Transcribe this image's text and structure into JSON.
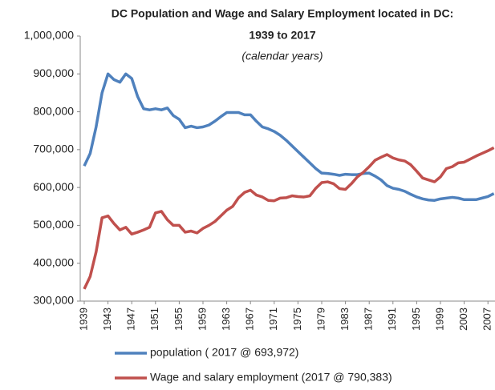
{
  "chart_data": {
    "type": "line",
    "title": "DC Population and Wage and Salary Employment located in DC:",
    "subtitle": "1939 to 2017",
    "note": "(calendar  years)",
    "categories": [
      "1939",
      null,
      null,
      null,
      "1943",
      null,
      null,
      null,
      "1947",
      null,
      null,
      null,
      "1951",
      null,
      null,
      null,
      "1955",
      null,
      null,
      null,
      "1959",
      null,
      null,
      null,
      "1963",
      null,
      null,
      null,
      "1967",
      null,
      null,
      null,
      "1971",
      null,
      null,
      null,
      "1975",
      null,
      null,
      null,
      "1979",
      null,
      null,
      null,
      "1983",
      null,
      null,
      null,
      "1987",
      null,
      null,
      null,
      "1991",
      null,
      null,
      null,
      "1995",
      null,
      null,
      null,
      "1999",
      null,
      null,
      null,
      "2003",
      null,
      null,
      null,
      "2007",
      null
    ],
    "series": [
      {
        "name": "population ( 2017 @ 693,972)",
        "color": "#4f81bd",
        "values": [
          657000,
          690000,
          760000,
          850000,
          900000,
          885000,
          878000,
          900000,
          888000,
          840000,
          808000,
          805000,
          808000,
          805000,
          810000,
          790000,
          780000,
          758000,
          762000,
          758000,
          760000,
          765000,
          775000,
          787000,
          798000,
          798000,
          798000,
          792000,
          792000,
          775000,
          760000,
          755000,
          748000,
          738000,
          725000,
          710000,
          695000,
          680000,
          665000,
          650000,
          638000,
          637000,
          635000,
          632000,
          635000,
          634000,
          634000,
          637000,
          638000,
          630000,
          620000,
          605000,
          598000,
          595000,
          590000,
          582000,
          575000,
          570000,
          567000,
          566000,
          570000,
          572000,
          574000,
          572000,
          568000,
          568000,
          568000,
          572000,
          576000,
          584000
        ]
      },
      {
        "name": "Wage and salary employment (2017 @ 790,383)",
        "color": "#c0504d",
        "values": [
          332000,
          365000,
          430000,
          520000,
          525000,
          505000,
          488000,
          495000,
          477000,
          482000,
          488000,
          495000,
          533000,
          537000,
          515000,
          500000,
          500000,
          482000,
          485000,
          480000,
          492000,
          500000,
          510000,
          525000,
          540000,
          550000,
          573000,
          587000,
          593000,
          580000,
          575000,
          566000,
          565000,
          572000,
          573000,
          578000,
          576000,
          575000,
          578000,
          598000,
          613000,
          615000,
          610000,
          597000,
          595000,
          610000,
          628000,
          640000,
          655000,
          672000,
          680000,
          687000,
          678000,
          673000,
          670000,
          660000,
          643000,
          625000,
          620000,
          615000,
          628000,
          650000,
          655000,
          665000,
          667000,
          675000,
          683000,
          690000,
          697000,
          705000
        ]
      }
    ],
    "ylim": [
      300000,
      1000000
    ],
    "yticks": [
      {
        "value": 300000,
        "label": "300,000"
      },
      {
        "value": 400000,
        "label": "400,000"
      },
      {
        "value": 500000,
        "label": "500,000"
      },
      {
        "value": 600000,
        "label": "600,000"
      },
      {
        "value": 700000,
        "label": "700,000"
      },
      {
        "value": 800000,
        "label": "800,000"
      },
      {
        "value": 900000,
        "label": "900,000"
      },
      {
        "value": 1000000,
        "label": "1,000,000"
      }
    ],
    "grid": false
  }
}
